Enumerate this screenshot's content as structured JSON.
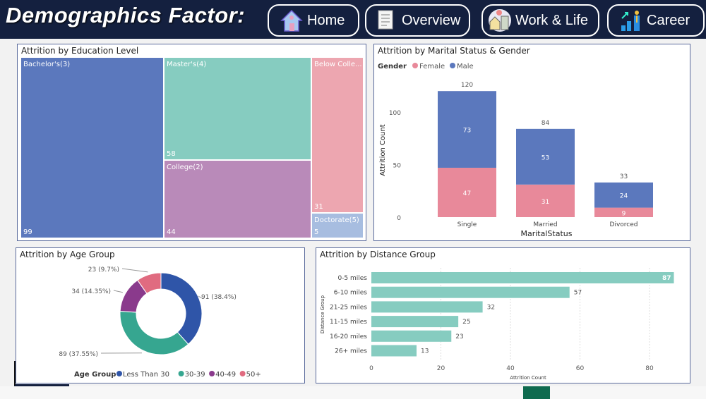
{
  "header": {
    "title": "Demographics Factor:",
    "nav": [
      {
        "label": "Home",
        "icon": "house-icon"
      },
      {
        "label": "Overview",
        "icon": "document-icon"
      },
      {
        "label": "Work & Life",
        "icon": "work-life-icon"
      },
      {
        "label": "Career",
        "icon": "career-growth-icon"
      }
    ]
  },
  "chart_data": [
    {
      "type": "treemap",
      "title": "Attrition  by Education Level",
      "items": [
        {
          "label": "Bachelor's(3)",
          "value": 99,
          "color": "#5b78bd"
        },
        {
          "label": "Master's(4)",
          "value": 58,
          "color": "#86ccc0"
        },
        {
          "label": "College(2)",
          "value": 44,
          "color": "#b98ab9"
        },
        {
          "label": "Below Colle...",
          "value": 31,
          "color": "#eda6b0"
        },
        {
          "label": "Doctorate(5)",
          "value": 5,
          "color": "#a7bde0"
        }
      ]
    },
    {
      "type": "bar",
      "stacked": true,
      "title": "Attrition by Marital Status & Gender",
      "legend_title": "Gender",
      "xlabel": "MaritalStatus",
      "ylabel": "Attrition Count",
      "ylim": [
        0,
        125
      ],
      "yticks": [
        0,
        50,
        100
      ],
      "categories": [
        "Single",
        "Married",
        "Divorced"
      ],
      "totals": [
        120,
        84,
        33
      ],
      "series": [
        {
          "name": "Female",
          "values": [
            47,
            31,
            9
          ],
          "color": "#e8899a"
        },
        {
          "name": "Male",
          "values": [
            73,
            53,
            24
          ],
          "color": "#5b78bd"
        }
      ]
    },
    {
      "type": "pie",
      "donut": true,
      "title": "Attrition by Age Group",
      "legend_title": "Age Group",
      "slices": [
        {
          "name": "Less Than 30",
          "value": 91,
          "label": "91 (38.4%)",
          "color": "#2f55a8"
        },
        {
          "name": "30-39",
          "value": 89,
          "label": "89 (37.55%)",
          "color": "#36a690"
        },
        {
          "name": "40-49",
          "value": 34,
          "label": "34 (14.35%)",
          "color": "#8a3a8c"
        },
        {
          "name": "50+",
          "value": 23,
          "label": "23 (9.7%)",
          "color": "#e06b80"
        }
      ]
    },
    {
      "type": "bar",
      "orientation": "horizontal",
      "title": "Attrition by Distance Group",
      "xlabel": "Attrition Count",
      "ylabel": "Distance Group",
      "xlim": [
        0,
        88
      ],
      "xticks": [
        0,
        20,
        40,
        60,
        80
      ],
      "grid": true,
      "color": "#86ccc0",
      "categories": [
        "0-5 miles",
        "6-10 miles",
        "21-25 miles",
        "11-15 miles",
        "16-20 miles",
        "26+ miles"
      ],
      "values": [
        87,
        57,
        32,
        25,
        23,
        13
      ]
    }
  ]
}
